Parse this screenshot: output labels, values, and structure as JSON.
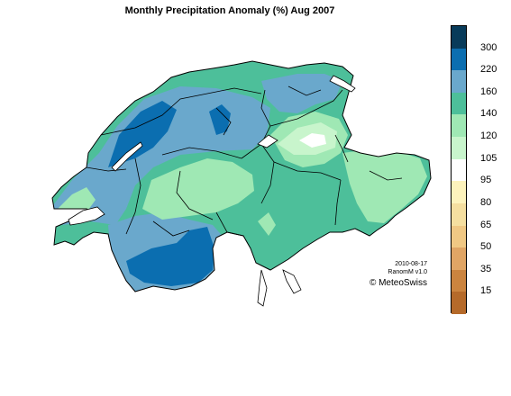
{
  "title": "Monthly Precipitation Anomaly (%) Aug 2007",
  "credits": {
    "date": "2010-08-17",
    "version": "RanomM v1.0",
    "org": "© MeteoSwiss"
  },
  "legend": {
    "labels": [
      "300",
      "220",
      "160",
      "140",
      "120",
      "105",
      "95",
      "80",
      "65",
      "50",
      "35",
      "15"
    ],
    "colors": [
      "#083b5a",
      "#0b6eb0",
      "#6aa8cc",
      "#4dbf9a",
      "#9fe8b4",
      "#c8f5cc",
      "#ffffff",
      "#fdf3bc",
      "#f5dfa0",
      "#f0c884",
      "#e0a565",
      "#cb843f",
      "#b56a2a"
    ]
  },
  "map": {
    "region": "Switzerland",
    "colors": {
      "c220": "#0b6eb0",
      "c160": "#6aa8cc",
      "c140": "#4dbf9a",
      "c120": "#9fe8b4",
      "c105": "#c8f5cc",
      "c95": "#ffffff",
      "border": "#000000"
    }
  }
}
